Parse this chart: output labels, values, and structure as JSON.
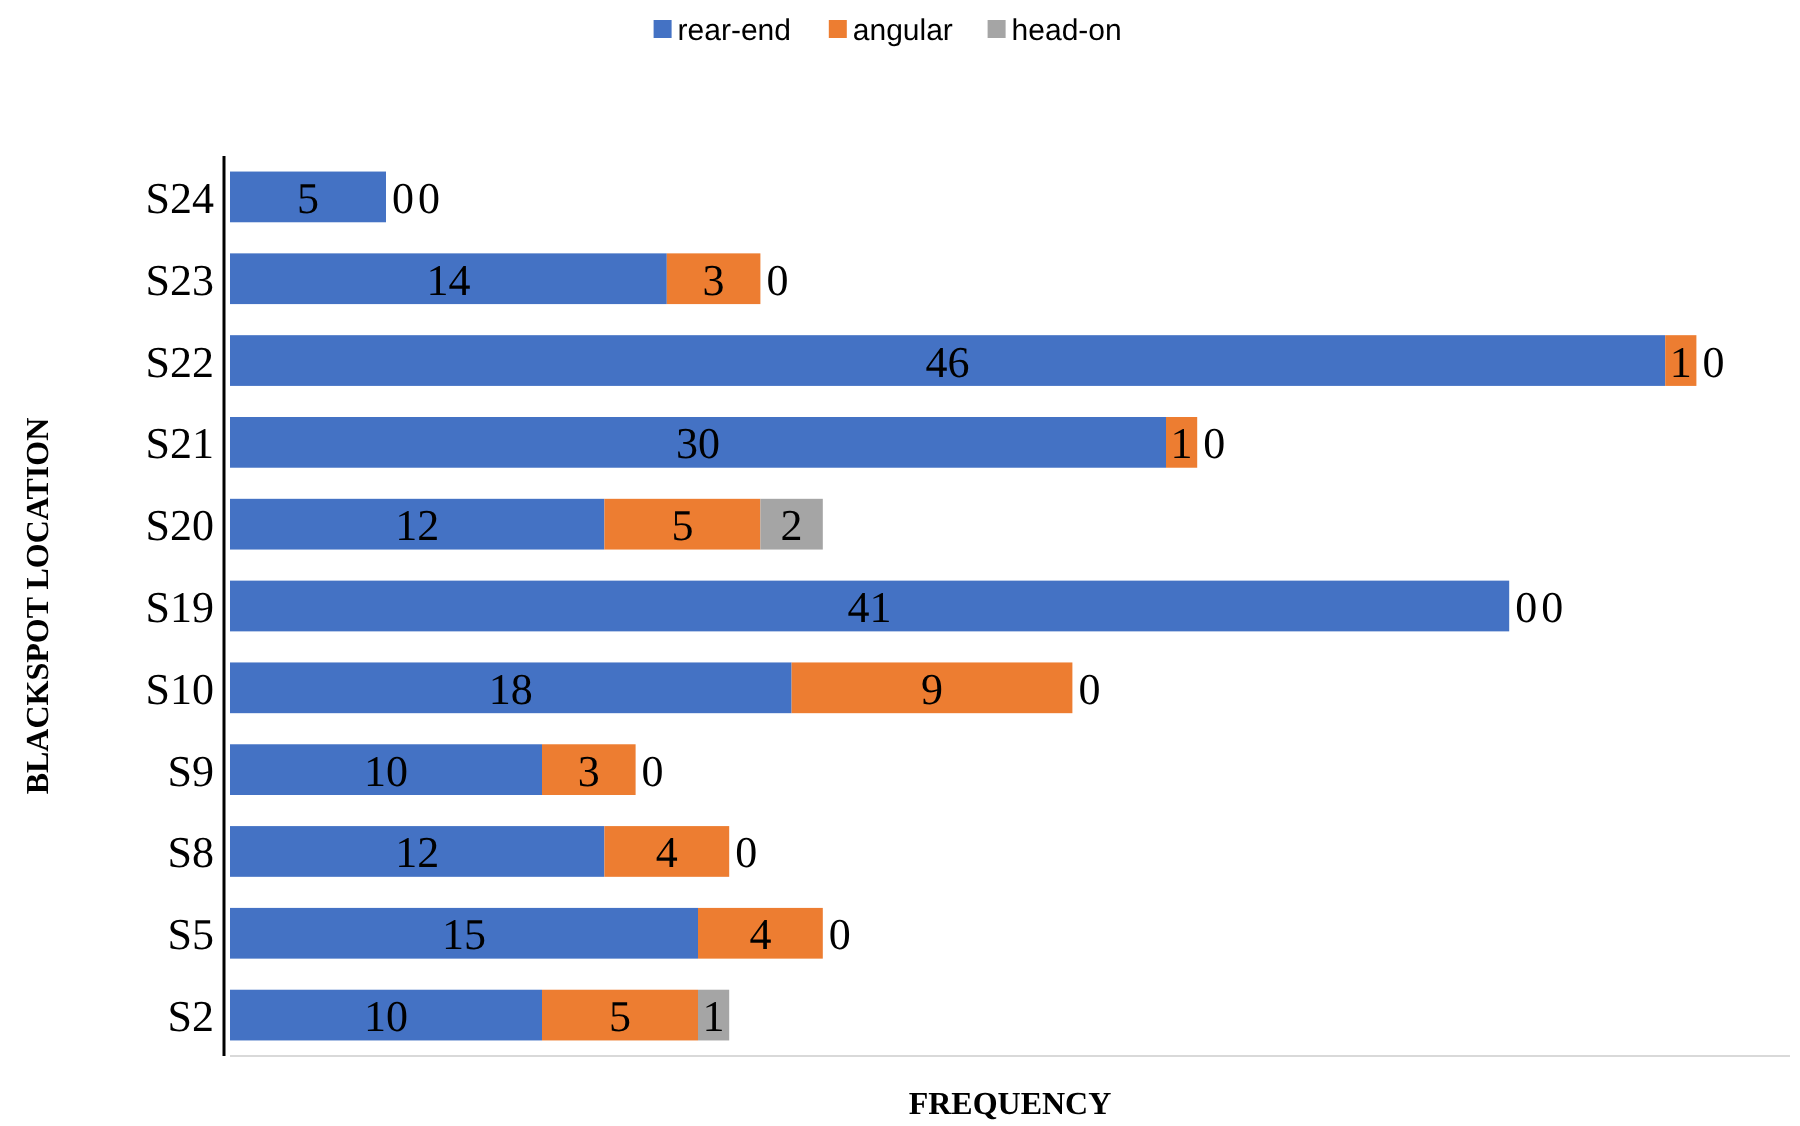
{
  "chart_data": {
    "type": "bar",
    "orientation": "horizontal",
    "stacked": true,
    "data_labels": true,
    "legend": "top",
    "xlabel": "FREQUENCY",
    "ylabel": "BLACKSPOT LOCATION",
    "categories": [
      "S24",
      "S23",
      "S22",
      "S21",
      "S20",
      "S19",
      "S10",
      "S9",
      "S8",
      "S5",
      "S2"
    ],
    "series": [
      {
        "name": "rear-end",
        "color": "#4472c4",
        "values": [
          5,
          14,
          46,
          30,
          12,
          41,
          18,
          10,
          12,
          15,
          10
        ]
      },
      {
        "name": "angular",
        "color": "#ed7d31",
        "values": [
          0,
          3,
          1,
          1,
          5,
          0,
          9,
          3,
          4,
          4,
          5
        ]
      },
      {
        "name": "head-on",
        "color": "#a5a5a5",
        "values": [
          0,
          0,
          0,
          0,
          2,
          0,
          0,
          0,
          0,
          0,
          1
        ]
      }
    ]
  }
}
